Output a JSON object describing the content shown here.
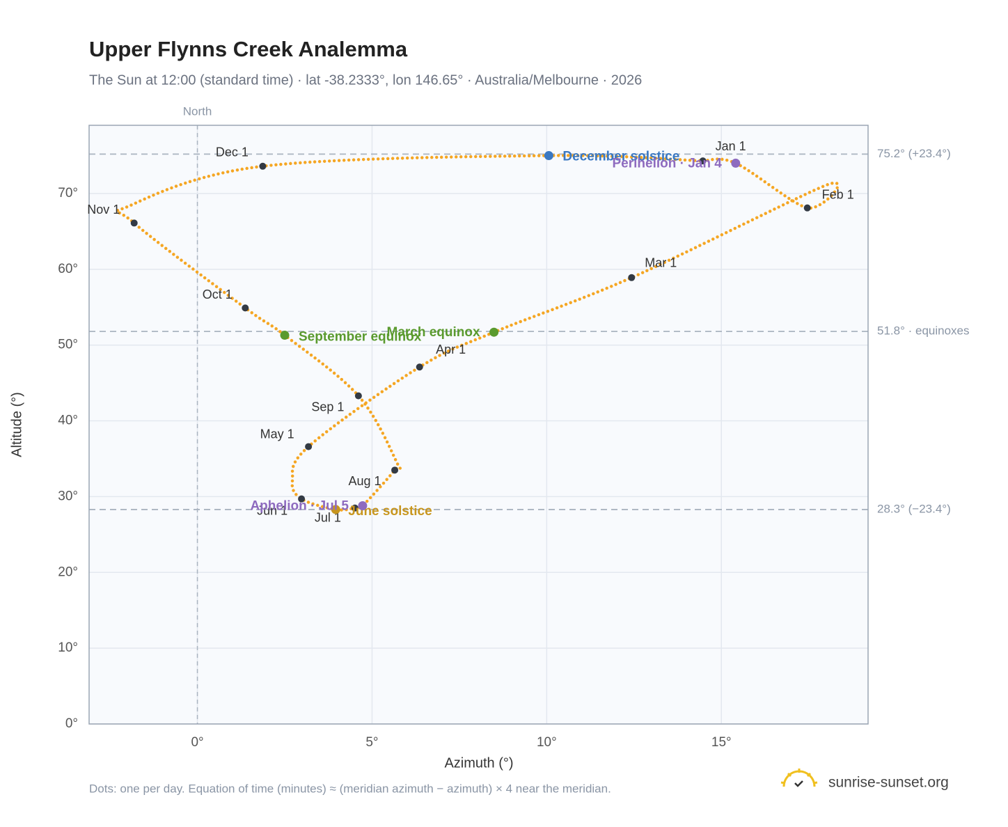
{
  "chart_data": {
    "type": "scatter",
    "title": "Upper Flynns Creek Analemma",
    "subtitle": "The Sun at 12:00 (standard time) · lat -38.2333°, lon 146.65° · Australia/Melbourne · 2026",
    "x_label": "Azimuth (°)",
    "y_label": "Altitude (°)",
    "north_label": "North",
    "footnote": "Dots: one per day. Equation of time (minutes) ≈ (meridian azimuth − azimuth) × 4 near the meridian.",
    "brand": "sunrise-sunset.org",
    "xlim": [
      -3.1,
      19.2
    ],
    "ylim": [
      0,
      79
    ],
    "xticks": [
      {
        "value": 0,
        "label": "0°"
      },
      {
        "value": 5,
        "label": "5°"
      },
      {
        "value": 10,
        "label": "10°"
      },
      {
        "value": 15,
        "label": "15°"
      }
    ],
    "yticks": [
      {
        "value": 0,
        "label": "0°"
      },
      {
        "value": 10,
        "label": "10°"
      },
      {
        "value": 20,
        "label": "20°"
      },
      {
        "value": 30,
        "label": "30°"
      },
      {
        "value": 40,
        "label": "40°"
      },
      {
        "value": 50,
        "label": "50°"
      },
      {
        "value": 60,
        "label": "60°"
      },
      {
        "value": 70,
        "label": "70°"
      }
    ],
    "grid": true,
    "curve": {
      "color": "#f5a623",
      "x": [
        14.47,
        15.41,
        17.46,
        18.0,
        12.43,
        8.49,
        6.36,
        3.18,
        2.72,
        2.98,
        3.96,
        4.51,
        4.73,
        5.65,
        5.71,
        4.61,
        2.5,
        1.37,
        -1.81,
        -1.93,
        1.87,
        10.06,
        14.47
      ],
      "y": [
        74.3,
        74.0,
        68.1,
        71.1,
        58.9,
        51.7,
        47.1,
        36.6,
        32.1,
        29.7,
        28.3,
        28.5,
        28.8,
        33.5,
        34.5,
        43.3,
        51.3,
        54.9,
        66.1,
        68.4,
        73.6,
        75.0,
        74.3
      ]
    },
    "month_markers": {
      "color": "#333a44",
      "categories": [
        "Jan 1",
        "Feb 1",
        "Mar 1",
        "Apr 1",
        "May 1",
        "Jun 1",
        "Jul 1",
        "Aug 1",
        "Sep 1",
        "Oct 1",
        "Nov 1",
        "Dec 1"
      ],
      "x": [
        14.47,
        17.46,
        12.43,
        6.36,
        3.18,
        2.98,
        4.51,
        5.65,
        4.61,
        1.37,
        -1.81,
        1.87
      ],
      "y": [
        74.3,
        68.1,
        58.9,
        47.1,
        36.6,
        29.7,
        28.5,
        33.5,
        43.3,
        54.9,
        66.1,
        73.6
      ]
    },
    "events": [
      {
        "name": "December solstice",
        "color": "#3a78c2",
        "x": 10.06,
        "y": 75.0
      },
      {
        "name": "March equinox",
        "color": "#5a9a2e",
        "x": 8.49,
        "y": 51.7
      },
      {
        "name": "September equinox",
        "color": "#5a9a2e",
        "x": 2.5,
        "y": 51.3
      },
      {
        "name": "June solstice",
        "color": "#c8961e",
        "x": 3.96,
        "y": 28.3
      },
      {
        "name": "Perihelion · Jan 4",
        "color": "#8e6bbf",
        "x": 15.41,
        "y": 74.0
      },
      {
        "name": "Aphelion · Jul 5",
        "color": "#8e6bbf",
        "x": 4.73,
        "y": 28.8
      }
    ],
    "reference_lines": [
      {
        "value": 75.2,
        "label": "75.2° (+23.4°)"
      },
      {
        "value": 51.8,
        "label": "51.8° · equinoxes"
      },
      {
        "value": 28.3,
        "label": "28.3° (−23.4°)"
      }
    ],
    "north_x": 0
  }
}
